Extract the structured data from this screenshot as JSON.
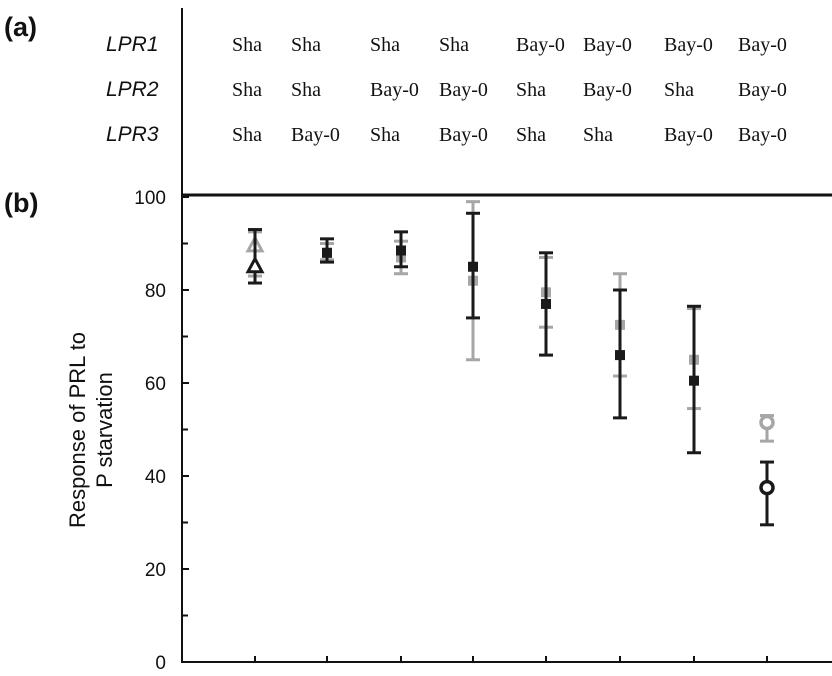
{
  "panels": {
    "a": "(a)",
    "b": "(b)"
  },
  "genotype_table": {
    "rows": [
      {
        "gene": "LPR1",
        "alleles": [
          "Sha",
          "Sha",
          "Sha",
          "Sha",
          "Bay-0",
          "Bay-0",
          "Bay-0",
          "Bay-0"
        ]
      },
      {
        "gene": "LPR2",
        "alleles": [
          "Sha",
          "Sha",
          "Bay-0",
          "Bay-0",
          "Sha",
          "Bay-0",
          "Sha",
          "Bay-0"
        ]
      },
      {
        "gene": "LPR3",
        "alleles": [
          "Sha",
          "Bay-0",
          "Sha",
          "Bay-0",
          "Sha",
          "Sha",
          "Bay-0",
          "Bay-0"
        ]
      }
    ]
  },
  "colors": {
    "black_series": "#1a1a1a",
    "gray_series": "#a6a6a6",
    "axis": "#111111"
  },
  "chart_data": {
    "type": "scatter",
    "ylabel_lines": [
      "Response of PRL to",
      "P starvation"
    ],
    "xlabel": "",
    "ylim": [
      0,
      100
    ],
    "y_ticks": [
      0,
      20,
      40,
      60,
      80,
      100
    ],
    "y_minor_ticks": [
      10,
      30,
      50,
      70,
      90
    ],
    "n_groups": 8,
    "grid": false,
    "legend": "none",
    "series": [
      {
        "color_key": "black_series",
        "points": [
          {
            "group": 1,
            "y": 85,
            "err_low": 81.5,
            "err_high": 93,
            "marker": "triangle-open"
          },
          {
            "group": 2,
            "y": 88,
            "err_low": 86,
            "err_high": 91,
            "marker": "square"
          },
          {
            "group": 3,
            "y": 88.5,
            "err_low": 85,
            "err_high": 92.5,
            "marker": "square"
          },
          {
            "group": 4,
            "y": 85,
            "err_low": 74,
            "err_high": 96.5,
            "marker": "square"
          },
          {
            "group": 5,
            "y": 77,
            "err_low": 66,
            "err_high": 88,
            "marker": "square"
          },
          {
            "group": 6,
            "y": 66,
            "err_low": 52.5,
            "err_high": 80,
            "marker": "square"
          },
          {
            "group": 7,
            "y": 60.5,
            "err_low": 45,
            "err_high": 76.5,
            "marker": "square"
          },
          {
            "group": 8,
            "y": 37.5,
            "err_low": 29.5,
            "err_high": 43,
            "marker": "circle-open"
          }
        ]
      },
      {
        "color_key": "gray_series",
        "points": [
          {
            "group": 1,
            "y": 89.5,
            "err_low": 83,
            "err_high": 92.5,
            "marker": "triangle-open"
          },
          {
            "group": 2,
            "y": 88,
            "err_low": 86.5,
            "err_high": 90,
            "marker": "square"
          },
          {
            "group": 3,
            "y": 87,
            "err_low": 83.5,
            "err_high": 90.5,
            "marker": "square"
          },
          {
            "group": 4,
            "y": 82,
            "err_low": 65,
            "err_high": 99,
            "marker": "square"
          },
          {
            "group": 5,
            "y": 79.5,
            "err_low": 72,
            "err_high": 87,
            "marker": "square"
          },
          {
            "group": 6,
            "y": 72.5,
            "err_low": 61.5,
            "err_high": 83.5,
            "marker": "square"
          },
          {
            "group": 7,
            "y": 65,
            "err_low": 54.5,
            "err_high": 76,
            "marker": "square"
          },
          {
            "group": 8,
            "y": 51.5,
            "err_low": 47.5,
            "err_high": 53,
            "marker": "circle-open"
          }
        ]
      }
    ]
  }
}
